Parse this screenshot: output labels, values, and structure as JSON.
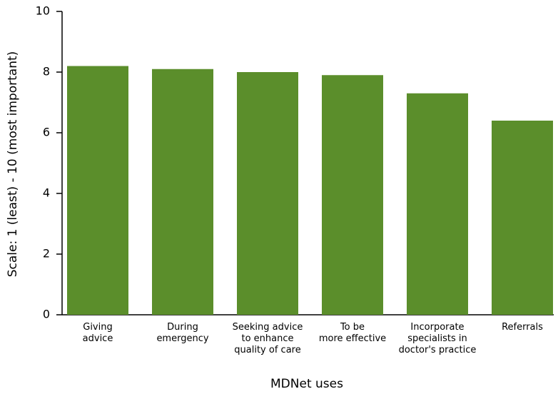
{
  "chart_data": {
    "type": "bar",
    "categories": [
      "Giving\nadvice",
      "During\nemergency",
      "Seeking advice\nto enhance\nquality of care",
      "To be\nmore effective",
      "Incorporate\nspecialists in\ndoctor's practice",
      "Referrals"
    ],
    "values": [
      8.2,
      8.1,
      8.0,
      7.9,
      7.3,
      6.4
    ],
    "color": "#5b8e2b",
    "xlabel": "MDNet uses",
    "ylabel": "Scale: 1 (least) - 10 (most important)",
    "ylim": [
      0,
      10
    ],
    "yticks": [
      0,
      2,
      4,
      6,
      8,
      10
    ],
    "grid": false
  }
}
